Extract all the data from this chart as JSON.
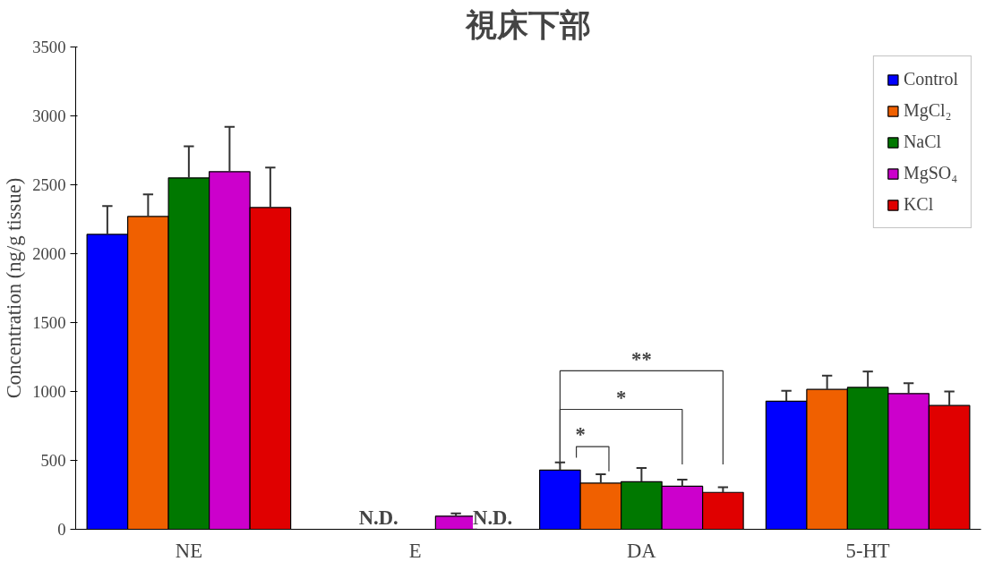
{
  "chart_data": {
    "type": "bar",
    "title": "視床下部",
    "ylabel": "Concentration (ng/g tissue)",
    "categories": [
      "NE",
      "E",
      "DA",
      "5-HT"
    ],
    "series": [
      {
        "name": "Control",
        "color": "#0000ff",
        "values": [
          2140,
          null,
          430,
          930
        ],
        "errors": [
          [
            2140,
            2345
          ],
          null,
          [
            430,
            485
          ],
          [
            930,
            1005
          ]
        ]
      },
      {
        "name": "MgCl₂",
        "color": "#f06000",
        "values": [
          2270,
          null,
          335,
          1015
        ],
        "errors": [
          [
            2270,
            2430
          ],
          null,
          [
            335,
            400
          ],
          [
            1015,
            1115
          ]
        ]
      },
      {
        "name": "NaCl",
        "color": "#007800",
        "values": [
          2550,
          null,
          345,
          1030
        ],
        "errors": [
          [
            2550,
            2780
          ],
          null,
          [
            345,
            445
          ],
          [
            1030,
            1145
          ]
        ]
      },
      {
        "name": "MgSO₄",
        "color": "#cc00cc",
        "values": [
          2595,
          95,
          312,
          985
        ],
        "errors": [
          [
            2595,
            2920
          ],
          [
            95,
            115
          ],
          [
            312,
            360
          ],
          [
            985,
            1060
          ]
        ]
      },
      {
        "name": "KCl",
        "color": "#e00000",
        "values": [
          2335,
          null,
          268,
          898
        ],
        "errors": [
          [
            2335,
            2625
          ],
          null,
          [
            268,
            305
          ],
          [
            898,
            1000
          ]
        ]
      }
    ],
    "annotations": [
      "N.D.",
      "N.D.",
      "**",
      "*",
      "*"
    ],
    "ylim": [
      0,
      3500
    ],
    "yticks": [
      0,
      500,
      1000,
      1500,
      2000,
      2500,
      3000,
      3500
    ],
    "legend": "top right"
  }
}
